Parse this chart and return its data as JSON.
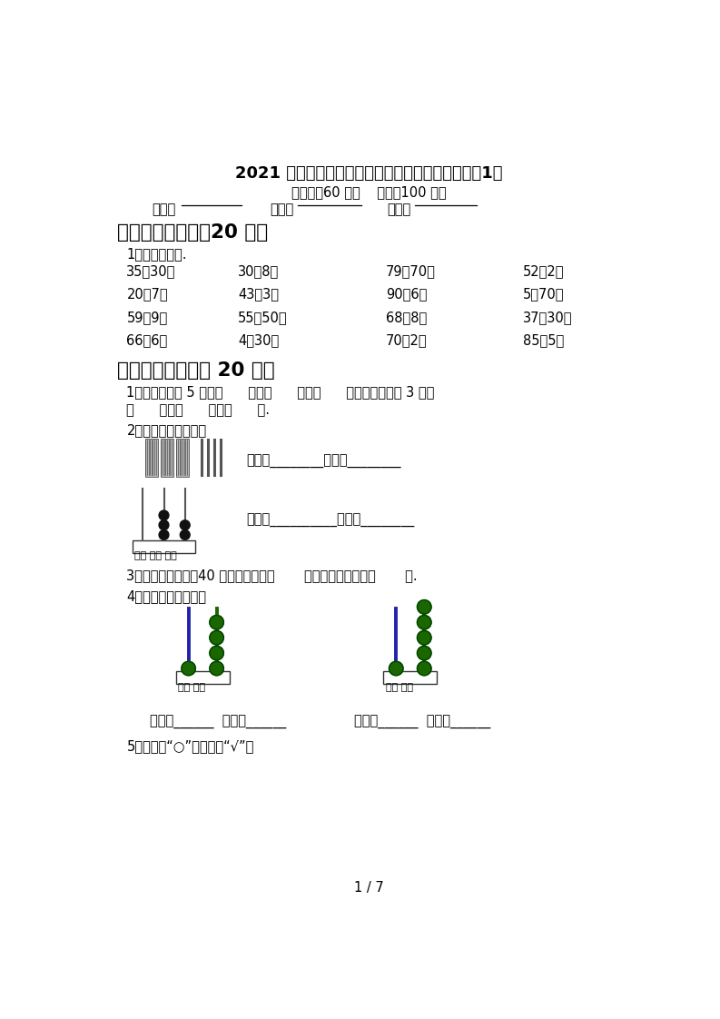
{
  "title": "2021 年部编版一年级数学下册期末考试卷及答案（1）",
  "subtitle": "（时间：60 分钟    分数：100 分）",
  "label_class": "班级：",
  "label_name": "姓名：",
  "label_score": "分数：",
  "section1_title": "一、计算小能手（20 分）",
  "section1_sub": "1、直接写得数.",
  "math_rows": [
    [
      "35－30＝",
      "30＋8＝",
      "79－70＝",
      "52－2＝"
    ],
    [
      "20＋7＝",
      "43－3＝",
      "90＋6＝",
      "5＋70＝"
    ],
    [
      "59－9＝",
      "55－50＝",
      "68－8＝",
      "37－30＝"
    ],
    [
      "66－6＝",
      "4＋30＝",
      "70＋2＝",
      "85－5＝"
    ]
  ],
  "section2_title": "二、填空题。（共 20 分）",
  "q1_text1": "1、写出个位是 5 的数（      ）、（      ）、（      ）；写出十位是 3 的数",
  "q1_text2": "（      ）、（      ）、（      ）.",
  "q2_text": "2、我会读，我会写。",
  "q2_read1": "读作：________写作：________",
  "q2_read2": "读作：__________写作：________",
  "q3_text": "3、一个一个地数，40 前面一个数是（       ），后面一个数是（       ）.",
  "q4_text": "4、写一写，读一读。",
  "q4_write1": "写作：______  读作：______",
  "q4_write2": "写作：______  读作：______",
  "q5_text": "5、轻的画“○”，重的画“√”。",
  "page_num": "1 / 7",
  "bg_color": "#ffffff",
  "text_color": "#000000"
}
